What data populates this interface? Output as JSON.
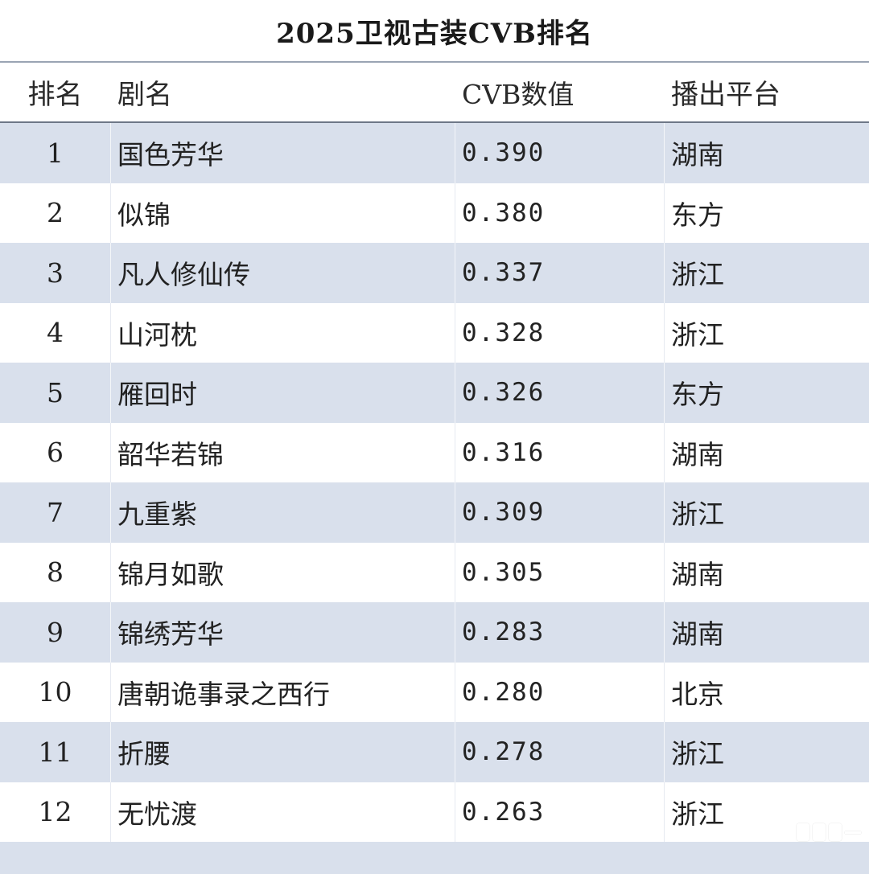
{
  "title": "2025卫视古装CVB排名",
  "headers": {
    "rank": "排名",
    "name": "剧名",
    "cvb": "CVB数值",
    "platform": "播出平台"
  },
  "rows": [
    {
      "rank": "1",
      "name": "国色芳华",
      "cvb": "0.390",
      "platform": "湖南"
    },
    {
      "rank": "2",
      "name": "似锦",
      "cvb": "0.380",
      "platform": "东方"
    },
    {
      "rank": "3",
      "name": "凡人修仙传",
      "cvb": "0.337",
      "platform": "浙江"
    },
    {
      "rank": "4",
      "name": "山河枕",
      "cvb": "0.328",
      "platform": "浙江"
    },
    {
      "rank": "5",
      "name": "雁回时",
      "cvb": "0.326",
      "platform": "东方"
    },
    {
      "rank": "6",
      "name": "韶华若锦",
      "cvb": "0.316",
      "platform": "湖南"
    },
    {
      "rank": "7",
      "name": "九重紫",
      "cvb": "0.309",
      "platform": "浙江"
    },
    {
      "rank": "8",
      "name": "锦月如歌",
      "cvb": "0.305",
      "platform": "湖南"
    },
    {
      "rank": "9",
      "name": "锦绣芳华",
      "cvb": "0.283",
      "platform": "湖南"
    },
    {
      "rank": "10",
      "name": "唐朝诡事录之西行",
      "cvb": "0.280",
      "platform": "北京"
    },
    {
      "rank": "11",
      "name": "折腰",
      "cvb": "0.278",
      "platform": "浙江"
    },
    {
      "rank": "12",
      "name": "无忧渡",
      "cvb": "0.263",
      "platform": "浙江"
    }
  ],
  "colors": {
    "shaded_row": "#d9e0ec",
    "plain_row": "#ffffff",
    "header_border": "#6e7887"
  },
  "watermark_icon": "app-watermark-icon"
}
